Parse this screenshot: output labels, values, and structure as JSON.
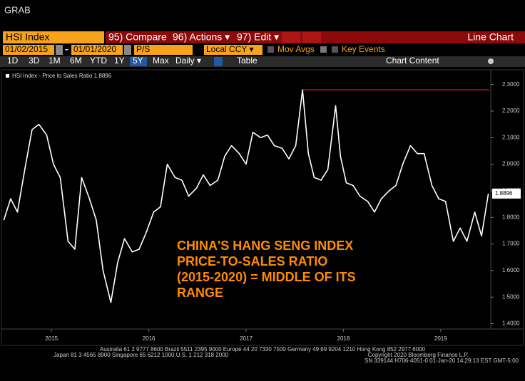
{
  "ui": {
    "grab": "GRAB",
    "security": "HSI Index",
    "buttons": [
      "95) Compare",
      "96) Actions ▾",
      "97) Edit ▾"
    ],
    "chart_kind": "Line Chart",
    "start_date": "01/02/2015",
    "end_date": "01/01/2020",
    "field": "P/S",
    "currency": "Local CCY ▾",
    "mov_avgs": "Mov Avgs",
    "key_events": "Key Events",
    "ranges": [
      "1D",
      "3D",
      "1M",
      "6M",
      "YTD",
      "1Y",
      "5Y",
      "Max",
      "Daily ▾"
    ],
    "table": "Table",
    "chart_content": "Chart Content",
    "footer": [
      "Australia 61 2 9777 8600 Brazil 5511 2395 9000 Europe 44 20 7330 7500 Germany 49 69 9204 1210 Hong Kong 852 2977 6000",
      "Japan 81 3 4565 8900        Singapore 65 6212 1000        U.S. 1 212 318 2000",
      "Copyright 2020 Bloomberg Finance L.P.",
      "SN 339144 H706-4051-0 01-Jan-20 14:29:13 EST  GMT-5:00"
    ]
  },
  "chart_data": {
    "type": "line",
    "annotation": [
      "CHINA'S HANG SENG INDEX",
      "PRICE-TO-SALES RATIO",
      "(2015-2020) = MIDDLE OF ITS",
      "RANGE"
    ],
    "annotation_color": "#ff8c00",
    "xlim": [
      2015,
      2020
    ],
    "xticks": [
      {
        "value": 2015.5,
        "label": "2015"
      },
      {
        "value": 2016.5,
        "label": "2016"
      },
      {
        "value": 2017.5,
        "label": "2017"
      },
      {
        "value": 2018.5,
        "label": "2018"
      },
      {
        "value": 2019.5,
        "label": "2019"
      }
    ],
    "ylim": [
      1.38,
      2.35
    ],
    "yticks": [
      {
        "value": 1.4,
        "label": "1.4000"
      },
      {
        "value": 1.5,
        "label": "1.5000"
      },
      {
        "value": 1.6,
        "label": "1.6000"
      },
      {
        "value": 1.7,
        "label": "1.7000"
      },
      {
        "value": 1.8,
        "label": "1.8000"
      },
      {
        "value": 1.9,
        "label": "1.9000"
      },
      {
        "value": 2.0,
        "label": "2.0000"
      },
      {
        "value": 2.1,
        "label": "2.1000"
      },
      {
        "value": 2.2,
        "label": "2.2000"
      },
      {
        "value": 2.3,
        "label": "2.3000"
      }
    ],
    "grid": false,
    "max_line_color": "#e02020",
    "series": [
      {
        "name": "HSI Index - Price to Sales Ratio",
        "color": "#ffffff",
        "x": [
          2015.01,
          2015.08,
          2015.15,
          2015.23,
          2015.3,
          2015.37,
          2015.45,
          2015.52,
          2015.59,
          2015.67,
          2015.74,
          2015.81,
          2015.89,
          2015.96,
          2016.03,
          2016.11,
          2016.18,
          2016.25,
          2016.33,
          2016.4,
          2016.47,
          2016.55,
          2016.62,
          2016.69,
          2016.77,
          2016.84,
          2016.91,
          2016.99,
          2017.06,
          2017.13,
          2017.21,
          2017.28,
          2017.35,
          2017.43,
          2017.5,
          2017.57,
          2017.65,
          2017.72,
          2017.79,
          2017.87,
          2017.94,
          2018.01,
          2018.08,
          2018.14,
          2018.2,
          2018.27,
          2018.34,
          2018.42,
          2018.47,
          2018.53,
          2018.6,
          2018.67,
          2018.75,
          2018.82,
          2018.89,
          2018.97,
          2019.04,
          2019.11,
          2019.19,
          2019.26,
          2019.33,
          2019.41,
          2019.48,
          2019.55,
          2019.63,
          2019.7,
          2019.77,
          2019.85,
          2019.92,
          2019.99
        ],
        "values": [
          1.79,
          1.87,
          1.82,
          1.99,
          2.13,
          2.15,
          2.11,
          2.0,
          1.95,
          1.71,
          1.68,
          1.95,
          1.87,
          1.79,
          1.6,
          1.48,
          1.63,
          1.72,
          1.67,
          1.68,
          1.74,
          1.82,
          1.84,
          2.0,
          1.95,
          1.94,
          1.88,
          1.91,
          1.96,
          1.92,
          1.94,
          2.03,
          2.07,
          2.04,
          2.0,
          2.12,
          2.1,
          2.11,
          2.07,
          2.06,
          2.02,
          2.07,
          2.28,
          2.04,
          1.95,
          1.94,
          1.98,
          2.22,
          2.03,
          1.93,
          1.92,
          1.88,
          1.86,
          1.82,
          1.87,
          1.9,
          1.92,
          2.0,
          2.07,
          2.04,
          2.04,
          1.92,
          1.87,
          1.86,
          1.71,
          1.76,
          1.71,
          1.82,
          1.73,
          1.8896
        ]
      }
    ]
  }
}
